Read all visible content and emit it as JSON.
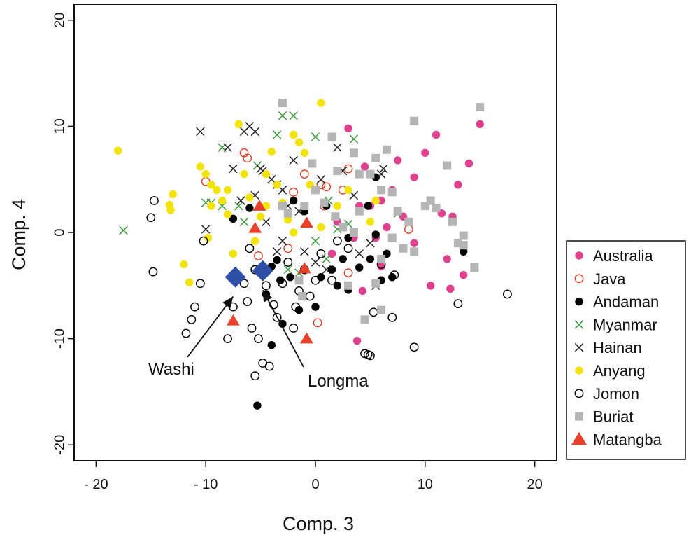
{
  "chart_data": {
    "type": "scatter",
    "xlabel": "Comp. 3",
    "ylabel": "Comp. 4",
    "xlim": [
      -22,
      22
    ],
    "ylim": [
      -21.5,
      21.5
    ],
    "xticks": [
      -20,
      -10,
      0,
      10,
      20
    ],
    "yticks": [
      -20,
      -10,
      0,
      10,
      20
    ],
    "xtick_labels": [
      "- 20",
      "- 10",
      "0",
      "10",
      "20"
    ],
    "ytick_labels": [
      "-20",
      "-10",
      "0",
      "10",
      "20"
    ],
    "grid": false,
    "legend_position": "right",
    "annotations": [
      {
        "text": "Washi",
        "point": [
          -7.5,
          -5.5
        ]
      },
      {
        "text": "Longma",
        "point": [
          -4.8,
          -4.9
        ]
      }
    ],
    "series": [
      {
        "name": "Australia",
        "marker": "filled-circle",
        "color": "#e0418f",
        "points": [
          [
            15,
            10.2
          ],
          [
            14,
            6.5
          ],
          [
            13,
            4.5
          ],
          [
            12.5,
            1.5
          ],
          [
            11,
            9.2
          ],
          [
            10,
            7.5
          ],
          [
            9,
            5.2
          ],
          [
            8.5,
            1
          ],
          [
            7.5,
            6.8
          ],
          [
            7,
            4
          ],
          [
            6,
            3
          ],
          [
            5.5,
            -0.5
          ],
          [
            4,
            2.5
          ],
          [
            3,
            9.8
          ],
          [
            2.5,
            -2.5
          ],
          [
            10.5,
            -5
          ],
          [
            12,
            -2.5
          ],
          [
            11.5,
            1.8
          ],
          [
            13.5,
            -4
          ],
          [
            9,
            -1
          ],
          [
            8,
            1.5
          ],
          [
            6.5,
            0.5
          ],
          [
            3.5,
            -0.5
          ],
          [
            2,
            1
          ],
          [
            4.5,
            6.2
          ],
          [
            6,
            -3.2
          ],
          [
            3.8,
            -10.2
          ],
          [
            4.3,
            -5.5
          ],
          [
            12.3,
            -5.3
          ],
          [
            1.5,
            -2
          ],
          [
            5,
            2.5
          ]
        ]
      },
      {
        "name": "Java",
        "marker": "open-circle",
        "color": "#e0412a",
        "points": [
          [
            -6.5,
            7.5
          ],
          [
            -6.2,
            7
          ],
          [
            -10,
            4.8
          ],
          [
            0.2,
            -8.5
          ],
          [
            0.5,
            4.5
          ],
          [
            1,
            4.3
          ],
          [
            2.5,
            4
          ],
          [
            3,
            6
          ],
          [
            -2,
            3.8
          ],
          [
            -1,
            5.5
          ],
          [
            -2.5,
            -1.5
          ],
          [
            8.5,
            0.3
          ],
          [
            3,
            -3.8
          ],
          [
            0.8,
            2.5
          ],
          [
            -5.2,
            -2.2
          ]
        ]
      },
      {
        "name": "Andaman",
        "marker": "filled-circle",
        "color": "#000000",
        "points": [
          [
            -5.3,
            -16.3
          ],
          [
            -4,
            -10.6
          ],
          [
            -3,
            -8.6
          ],
          [
            -1.5,
            -7.3
          ],
          [
            0,
            -7
          ],
          [
            0.5,
            -4.2
          ],
          [
            1.5,
            -3.5
          ],
          [
            2,
            -5
          ],
          [
            3,
            -5.4
          ],
          [
            4,
            -3.3
          ],
          [
            5,
            -2.5
          ],
          [
            6,
            -4.5
          ],
          [
            7,
            -4.2
          ],
          [
            6.5,
            -2
          ],
          [
            5.5,
            5.2
          ],
          [
            3,
            -0.5
          ],
          [
            1,
            2.5
          ],
          [
            -1,
            2
          ],
          [
            -2,
            3
          ],
          [
            -4,
            -3.2
          ],
          [
            -6,
            2.3
          ],
          [
            -7.5,
            1.3
          ],
          [
            -3.5,
            -2.6
          ],
          [
            2.5,
            -2.5
          ],
          [
            -2.3,
            -4.2
          ],
          [
            -3.2,
            -4.5
          ],
          [
            13.5,
            -1.8
          ],
          [
            5.5,
            -0.2
          ],
          [
            -4.5,
            -5.8
          ],
          [
            4.8,
            2.5
          ]
        ]
      },
      {
        "name": "Myanmar",
        "marker": "x",
        "color": "#3a9a3a",
        "points": [
          [
            -17.5,
            0.2
          ],
          [
            -10,
            2.8
          ],
          [
            -9.5,
            2.8
          ],
          [
            -8.5,
            8
          ],
          [
            -3.5,
            9.2
          ],
          [
            -3,
            11
          ],
          [
            -2,
            11
          ],
          [
            -2.5,
            -3.5
          ],
          [
            -1.5,
            -3.8
          ],
          [
            0,
            -0.8
          ],
          [
            1,
            -2.5
          ],
          [
            2,
            0.3
          ],
          [
            3,
            0.8
          ],
          [
            3.5,
            8.8
          ],
          [
            7.5,
            1.8
          ],
          [
            -7,
            2.5
          ],
          [
            -5.3,
            6.3
          ],
          [
            0,
            9
          ],
          [
            1.2,
            3
          ],
          [
            -8.5,
            2.5
          ],
          [
            -6.5,
            1
          ]
        ]
      },
      {
        "name": "Hainan",
        "marker": "x",
        "color": "#222222",
        "points": [
          [
            -10.5,
            9.5
          ],
          [
            -10,
            0.3
          ],
          [
            -8,
            8
          ],
          [
            -7.5,
            6
          ],
          [
            -6.5,
            9.5
          ],
          [
            -6,
            10
          ],
          [
            -5.5,
            9.5
          ],
          [
            -5,
            6
          ],
          [
            -4.8,
            5.8
          ],
          [
            -4,
            5
          ],
          [
            -3.5,
            4.5
          ],
          [
            -3,
            4
          ],
          [
            -2.5,
            2.5
          ],
          [
            -2,
            6.8
          ],
          [
            -1.5,
            2
          ],
          [
            -1,
            -1.8
          ],
          [
            0,
            -2.8
          ],
          [
            1,
            -3.5
          ],
          [
            2,
            8
          ],
          [
            2.5,
            5.8
          ],
          [
            3.5,
            3.5
          ],
          [
            4,
            -2
          ],
          [
            5,
            -1
          ],
          [
            5.5,
            -5
          ],
          [
            6,
            5.5
          ],
          [
            6.2,
            6
          ],
          [
            -4.5,
            1
          ],
          [
            -3.5,
            -1.8
          ],
          [
            -5.5,
            3.5
          ],
          [
            -6.8,
            3
          ],
          [
            -3,
            -0.8
          ],
          [
            0.5,
            5
          ]
        ]
      },
      {
        "name": "Anyang",
        "marker": "filled-circle",
        "color": "#f3e30c",
        "points": [
          [
            -18,
            7.7
          ],
          [
            -13,
            3.6
          ],
          [
            -13.3,
            2.6
          ],
          [
            -13.2,
            2.1
          ],
          [
            -12,
            -3
          ],
          [
            -11.5,
            -4.7
          ],
          [
            -10.5,
            6.2
          ],
          [
            -10,
            5.5
          ],
          [
            -9.5,
            4.5
          ],
          [
            -9,
            4
          ],
          [
            -8.5,
            3
          ],
          [
            -8,
            1.7
          ],
          [
            -7.5,
            -2
          ],
          [
            -7,
            10.2
          ],
          [
            -6.5,
            5.5
          ],
          [
            -6,
            3.3
          ],
          [
            -5.5,
            -0.8
          ],
          [
            -5,
            1.5
          ],
          [
            -4.5,
            5.5
          ],
          [
            -4,
            7.6
          ],
          [
            -3.5,
            4.5
          ],
          [
            -3,
            2.8
          ],
          [
            -2.5,
            1.2
          ],
          [
            -2,
            9.2
          ],
          [
            -1.5,
            8.5
          ],
          [
            -1,
            7.5
          ],
          [
            -0.5,
            4.5
          ],
          [
            0.5,
            12.2
          ],
          [
            0.5,
            0.5
          ],
          [
            2,
            2.5
          ],
          [
            -9.8,
            -0.5
          ],
          [
            -9.5,
            2.5
          ],
          [
            -4.5,
            2.5
          ],
          [
            -2,
            0
          ],
          [
            -8,
            4
          ],
          [
            5,
            1
          ],
          [
            3,
            4
          ],
          [
            2.5,
            0.5
          ],
          [
            5.5,
            3
          ]
        ]
      },
      {
        "name": "Jomon",
        "marker": "open-circle",
        "color": "#000000",
        "points": [
          [
            -14.7,
            3
          ],
          [
            -15,
            1.4
          ],
          [
            -14.8,
            -3.7
          ],
          [
            -10.5,
            -4.8
          ],
          [
            -10.2,
            -0.8
          ],
          [
            -11,
            -7
          ],
          [
            -11.3,
            -8.2
          ],
          [
            -11.8,
            -9.5
          ],
          [
            -8,
            -10
          ],
          [
            -7.5,
            -7
          ],
          [
            -7.2,
            -4
          ],
          [
            -6.5,
            -4.8
          ],
          [
            -6.2,
            -6.5
          ],
          [
            -5.8,
            -9
          ],
          [
            -5.5,
            -13.5
          ],
          [
            -5.2,
            -10
          ],
          [
            -4.8,
            -12.3
          ],
          [
            -4.2,
            -12.6
          ],
          [
            -3.5,
            -8
          ],
          [
            -3,
            -4.8
          ],
          [
            -2.5,
            -2.8
          ],
          [
            -2,
            -9
          ],
          [
            -1.8,
            -7
          ],
          [
            -1.5,
            -5.5
          ],
          [
            -1,
            -3.5
          ],
          [
            -0.5,
            -6
          ],
          [
            0,
            -4.5
          ],
          [
            0.5,
            -2
          ],
          [
            1.5,
            -4.5
          ],
          [
            2,
            -0.8
          ],
          [
            3,
            -1.5
          ],
          [
            4.5,
            -11.4
          ],
          [
            4.8,
            -11.5
          ],
          [
            5,
            -11.6
          ],
          [
            5.3,
            -7.5
          ],
          [
            6,
            -3
          ],
          [
            7,
            -8
          ],
          [
            7.2,
            -4
          ],
          [
            9,
            -10.8
          ],
          [
            13,
            -6.7
          ],
          [
            17.5,
            -5.8
          ],
          [
            -5.5,
            -3.5
          ],
          [
            -4.5,
            -5
          ],
          [
            -3.8,
            -6.8
          ],
          [
            -6,
            -1.5
          ]
        ]
      },
      {
        "name": "Buriat",
        "marker": "filled-square",
        "color": "#b5b5b5",
        "points": [
          [
            -3,
            12.2
          ],
          [
            15,
            11.8
          ],
          [
            9,
            10.5
          ],
          [
            12,
            6.3
          ],
          [
            6.5,
            7.8
          ],
          [
            5.5,
            7
          ],
          [
            6,
            4
          ],
          [
            5,
            5.5
          ],
          [
            4,
            5.5
          ],
          [
            7,
            3.8
          ],
          [
            7.5,
            2
          ],
          [
            8.5,
            1
          ],
          [
            10,
            2.5
          ],
          [
            10.5,
            3
          ],
          [
            11,
            2.3
          ],
          [
            12.5,
            1
          ],
          [
            13.5,
            -0.3
          ],
          [
            13.5,
            -1.2
          ],
          [
            14.5,
            -3.3
          ],
          [
            9,
            -1.8
          ],
          [
            8,
            -1.5
          ],
          [
            7,
            -0.5
          ],
          [
            6,
            -2.5
          ],
          [
            5.5,
            -4.8
          ],
          [
            6,
            -7.3
          ],
          [
            4.5,
            -8.2
          ],
          [
            3,
            -5
          ],
          [
            3.5,
            0
          ],
          [
            4,
            2
          ],
          [
            2.5,
            0.5
          ],
          [
            1.8,
            1.5
          ],
          [
            0.8,
            2.8
          ],
          [
            0,
            4
          ],
          [
            -1,
            2.5
          ],
          [
            -1.2,
            -6
          ],
          [
            -1.5,
            -4.5
          ],
          [
            -2.5,
            1.8
          ],
          [
            1.5,
            9
          ],
          [
            2,
            5.8
          ],
          [
            3.5,
            7.5
          ],
          [
            -3,
            2.5
          ],
          [
            -0.3,
            6.5
          ],
          [
            13,
            -1
          ]
        ]
      },
      {
        "name": "Matangba",
        "marker": "filled-triangle",
        "color": "#e8402b",
        "points": [
          [
            -5.1,
            2.5
          ],
          [
            -5.5,
            0.4
          ],
          [
            -7.5,
            -8.3
          ],
          [
            -1,
            -3.4
          ],
          [
            -0.8,
            0.9
          ],
          [
            -0.8,
            -10
          ]
        ]
      },
      {
        "name": "Washi",
        "marker": "filled-diamond",
        "color": "#2d4fa6",
        "legend": false,
        "points": [
          [
            -7.3,
            -4.2
          ]
        ]
      },
      {
        "name": "Longma",
        "marker": "filled-diamond",
        "color": "#2d4fa6",
        "legend": false,
        "points": [
          [
            -4.8,
            -3.6
          ]
        ]
      }
    ]
  }
}
